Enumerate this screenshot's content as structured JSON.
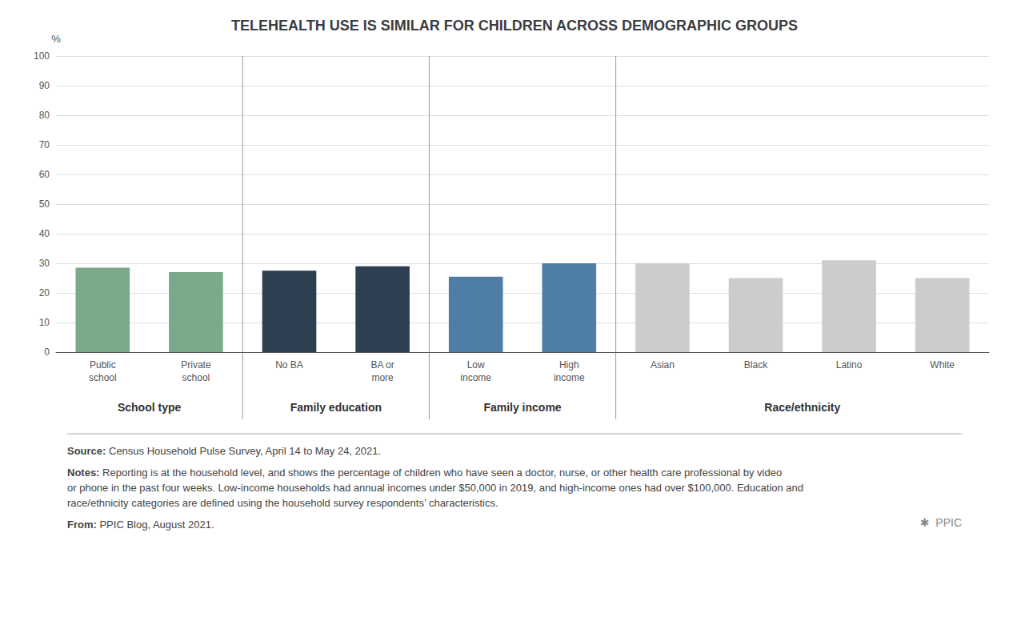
{
  "chart_data": {
    "type": "bar",
    "title": "TELEHEALTH USE IS SIMILAR FOR CHILDREN ACROSS DEMOGRAPHIC GROUPS",
    "categories": [
      "Public\nschool",
      "Private\nschool",
      "No BA",
      "BA or\nmore",
      "Low\nincome",
      "High\nincome",
      "Asian",
      "Black",
      "Latino",
      "White"
    ],
    "values": [
      28.5,
      27.0,
      27.5,
      29.0,
      25.5,
      30.0,
      30.0,
      25.0,
      31.0,
      25.0
    ],
    "colors": [
      "#7aaa8a",
      "#7aaa8a",
      "#2e3f52",
      "#2e3f52",
      "#4e7da6",
      "#4e7da6",
      "#cccccc",
      "#cccccc",
      "#cccccc",
      "#cccccc"
    ],
    "groups": [
      {
        "name": "School type",
        "categories": [
          "Public\nschool",
          "Private\nschool"
        ]
      },
      {
        "name": "Family education",
        "categories": [
          "No BA",
          "BA or\nmore"
        ]
      },
      {
        "name": "Family income",
        "categories": [
          "Low\nincome",
          "High\nincome"
        ]
      },
      {
        "name": "Race/ethnicity",
        "categories": [
          "Asian",
          "Black",
          "Latino",
          "White"
        ]
      }
    ],
    "ylabel": "%",
    "ylim": [
      0,
      100
    ],
    "yticks": [
      0,
      10,
      20,
      30,
      40,
      50,
      60,
      70,
      80,
      90,
      100
    ],
    "grid": true,
    "annotations": [
      {
        "label": "Source:",
        "text": "Census Household Pulse Survey, April 14 to May 24, 2021."
      },
      {
        "label": "Notes:",
        "text": "Reporting is at the household level, and shows the percentage of children who have seen a doctor, nurse, or other health care professional by video or phone in the past four weeks. Low-income households had annual incomes under $50,000 in 2019, and high-income ones had over $100,000. Education and race/ethnicity categories are defined using the household survey respondents’ characteristics."
      },
      {
        "label": "From:",
        "text": "PPIC Blog, August 2021."
      }
    ],
    "logo": "✱  PPIC"
  }
}
